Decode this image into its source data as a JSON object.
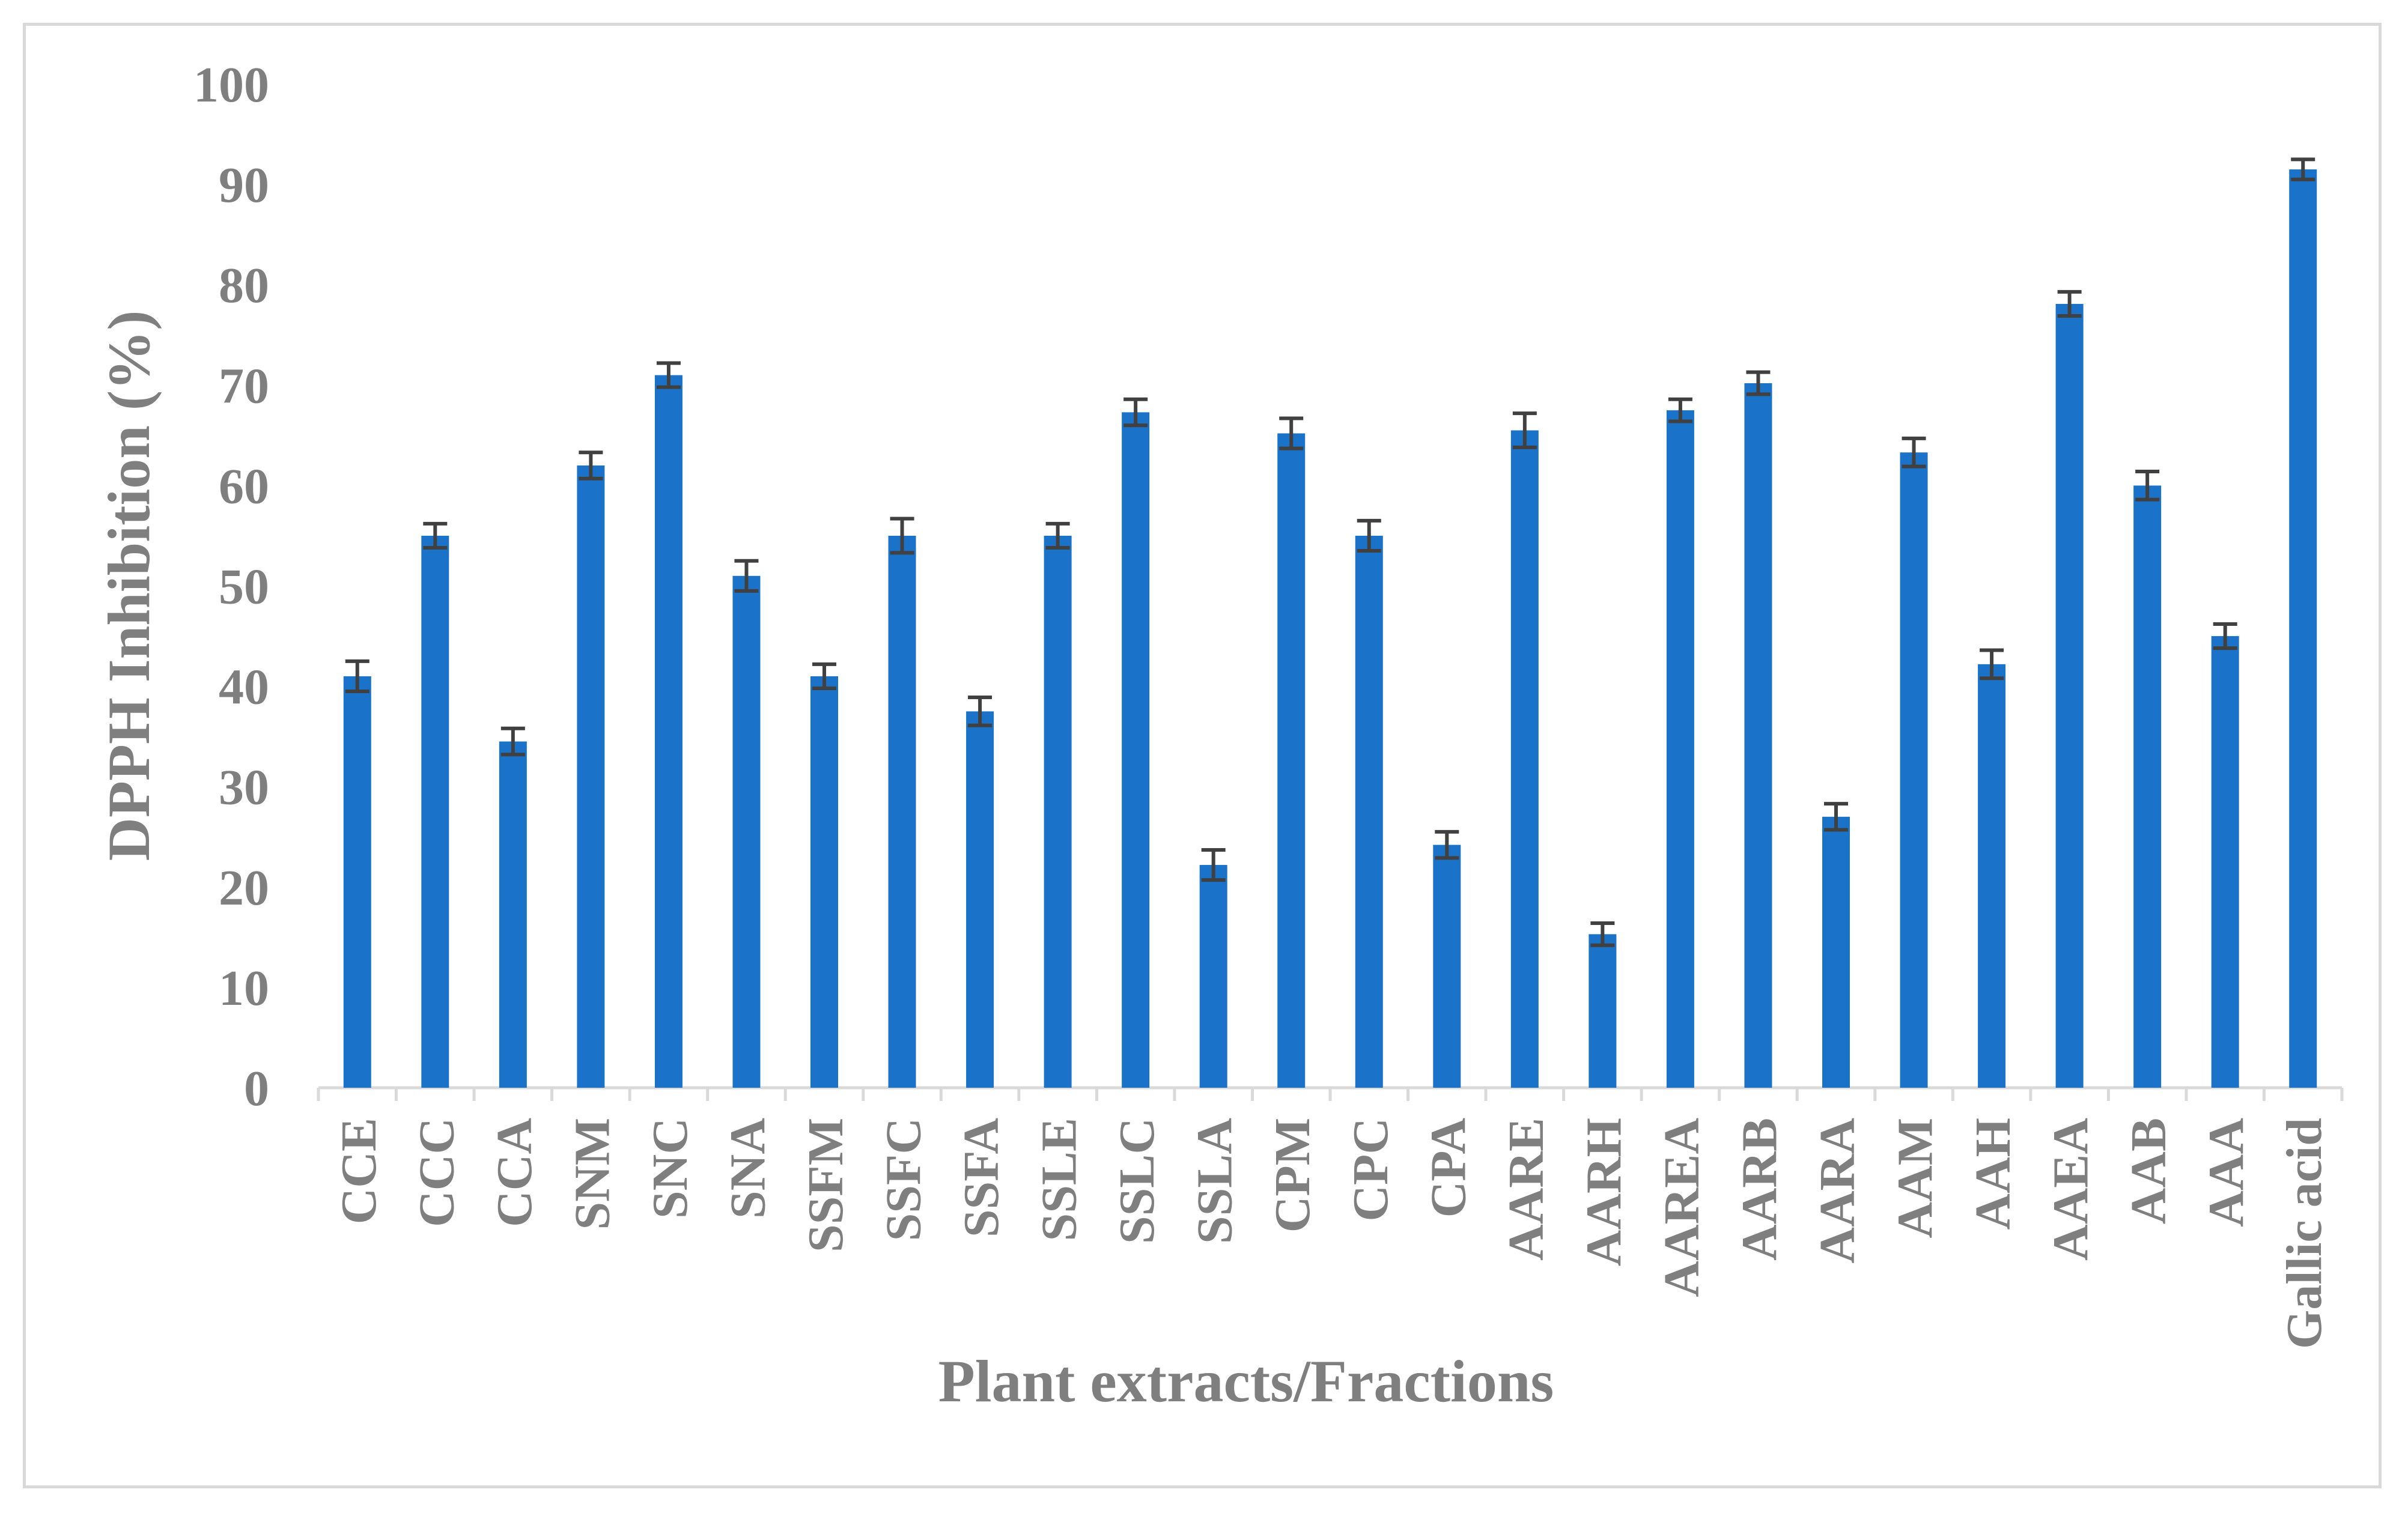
{
  "chart_data": {
    "type": "bar",
    "title": "",
    "xlabel": "Plant extracts/Fractions",
    "ylabel": "DPPH Inhibition (%)",
    "ylim": [
      0,
      100
    ],
    "yticks": [
      0,
      10,
      20,
      30,
      40,
      50,
      60,
      70,
      80,
      90,
      100
    ],
    "grid": false,
    "legend": "none",
    "bar_color": "#1b73c9",
    "error_color": "#404040",
    "categories": [
      "CCE",
      "CCC",
      "CCA",
      "SNM",
      "SNC",
      "SNA",
      "SSFM",
      "SSFC",
      "SSFA",
      "SSLE",
      "SSLC",
      "SSLA",
      "CPM",
      "CPC",
      "CPA",
      "AARE",
      "AARH",
      "AAREA",
      "AARB",
      "AARA",
      "AAM",
      "AAH",
      "AAEA",
      "AAB",
      "AAA",
      "Gallic acid"
    ],
    "values": [
      41,
      55,
      34.5,
      62,
      71,
      51,
      41,
      55,
      37.5,
      55,
      67.3,
      22.2,
      65.2,
      55,
      24.2,
      65.5,
      15.3,
      67.5,
      70.2,
      27,
      63.3,
      42.2,
      78.1,
      60,
      45,
      91.5
    ],
    "errors": [
      1.5,
      1.2,
      1.3,
      1.3,
      1.2,
      1.5,
      1.2,
      1.7,
      1.4,
      1.2,
      1.3,
      1.5,
      1.5,
      1.5,
      1.3,
      1.7,
      1.1,
      1.1,
      1.1,
      1.3,
      1.4,
      1.4,
      1.2,
      1.4,
      1.2,
      1.0
    ]
  }
}
